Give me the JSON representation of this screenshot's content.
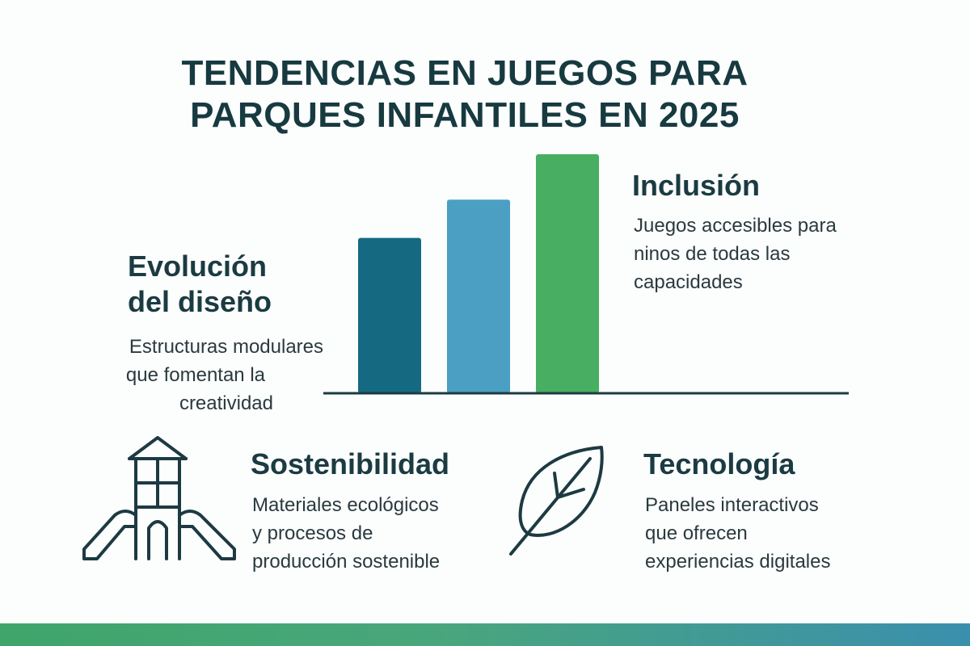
{
  "title": {
    "line1": "TENDENCIAS EN JUEGOS PARA",
    "line2": "PARQUES INFANTILES EN 2025"
  },
  "sections": {
    "evolucion": {
      "heading_line1": "Evolución",
      "heading_line2": "del diseño",
      "desc_lines": [
        "Estructuras modulares",
        "que fomentan la",
        "creatividad"
      ]
    },
    "inclusion": {
      "heading": "Inclusión",
      "desc_lines": [
        "Juegos accesibles para",
        "ninos de todas las",
        "capacidades"
      ]
    },
    "sostenibilidad": {
      "heading": "Sostenibilidad",
      "desc_lines": [
        "Materiales ecológicos",
        "y procesos de",
        "producción sostenible"
      ],
      "icon": "playground-tower-slide-icon"
    },
    "tecnologia": {
      "heading": "Tecnología",
      "desc_lines": [
        "Paneles interactivos",
        "que ofrecen",
        "experiencias digitales"
      ],
      "icon": "leaf-icon"
    }
  },
  "bars": {
    "relative_heights": [
      0.65,
      0.81,
      1.0
    ],
    "colors": [
      "#156a82",
      "#4a9fc2",
      "#48ae62"
    ]
  },
  "colors": {
    "title": "#173a40",
    "text": "#2a3a3e",
    "icon_stroke": "#1d3a42",
    "band_start": "#3fa56a",
    "band_end": "#3b8fad"
  }
}
